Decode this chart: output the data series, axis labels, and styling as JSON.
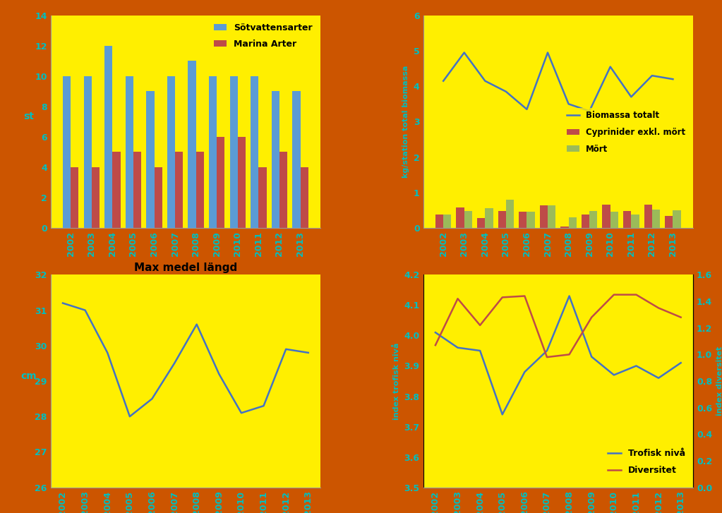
{
  "years": [
    2002,
    2003,
    2004,
    2005,
    2006,
    2007,
    2008,
    2009,
    2010,
    2011,
    2012,
    2013
  ],
  "sotvatten": [
    10,
    10,
    12,
    10,
    9,
    10,
    11,
    10,
    10,
    10,
    9,
    9
  ],
  "marina": [
    4,
    4,
    5,
    5,
    4,
    5,
    5,
    6,
    6,
    4,
    5,
    4
  ],
  "sotvatten_color": "#5B9BD5",
  "marina_color": "#BE4B48",
  "bar_chart_ylabel": "st",
  "bar_chart_ylim": [
    0,
    14
  ],
  "bar_chart_yticks": [
    0,
    2,
    4,
    6,
    8,
    10,
    12,
    14
  ],
  "bar_legend_sotvatten": "Sötvattensarter",
  "bar_legend_marina": "Marina Arter",
  "cyprinider": [
    0.38,
    0.58,
    0.28,
    0.48,
    0.45,
    0.63,
    0.05,
    0.38,
    0.65,
    0.48,
    0.65,
    0.35
  ],
  "mort": [
    0.38,
    0.48,
    0.55,
    0.8,
    0.45,
    0.63,
    0.3,
    0.48,
    0.45,
    0.38,
    0.52,
    0.5
  ],
  "biomassa_totalt": [
    4.15,
    4.95,
    4.15,
    3.85,
    3.35,
    4.95,
    3.5,
    3.3,
    4.55,
    3.7,
    4.3,
    4.2
  ],
  "cyprinider_color": "#BE4B48",
  "mort_color": "#9BBB59",
  "biomassa_color": "#4472C4",
  "bio_ylabel": "kg/station total biomassa",
  "bio_ylim": [
    0,
    6
  ],
  "bio_yticks": [
    0,
    1,
    2,
    3,
    4,
    5,
    6
  ],
  "bio_legend_cyp": "Cyprinider exkl. mört",
  "bio_legend_mort": "Mört",
  "bio_legend_bio": "Biomassa totalt",
  "max_medel": [
    31.2,
    31.0,
    29.8,
    28.0,
    28.5,
    29.5,
    30.6,
    29.2,
    28.1,
    28.3,
    29.9,
    29.8
  ],
  "medel_ylabel": "cm",
  "medel_ylim": [
    26,
    32
  ],
  "medel_yticks": [
    26,
    27,
    28,
    29,
    30,
    31,
    32
  ],
  "medel_title": "Max medel längd",
  "medel_color": "#4472C4",
  "trofisk": [
    4.01,
    3.96,
    3.95,
    3.74,
    3.88,
    3.95,
    4.13,
    3.93,
    3.87,
    3.9,
    3.86,
    3.91
  ],
  "diversitet": [
    1.07,
    1.42,
    1.22,
    1.43,
    1.44,
    0.98,
    1.0,
    1.28,
    1.45,
    1.45,
    1.35,
    1.28
  ],
  "trofisk_color": "#4472C4",
  "diversitet_color": "#BE4B48",
  "trofisk_ylabel": "index trofisk nivå",
  "diversitet_ylabel": "index diversitet",
  "trofisk_ylim": [
    3.5,
    4.2
  ],
  "trofisk_yticks": [
    3.5,
    3.6,
    3.7,
    3.8,
    3.9,
    4.0,
    4.1,
    4.2
  ],
  "diversitet_ylim": [
    0.0,
    1.6
  ],
  "diversitet_yticks": [
    0.0,
    0.2,
    0.4,
    0.6,
    0.8,
    1.0,
    1.2,
    1.4,
    1.6
  ],
  "trofisk_legend": "Trofisk nivå",
  "diversitet_legend": "Diversitet",
  "background_color": "#FFEF00",
  "outer_background": "#CC5500",
  "fig_background": "#CC5500",
  "axis_label_color": "#00BFBF",
  "tick_label_color": "#00BFBF"
}
